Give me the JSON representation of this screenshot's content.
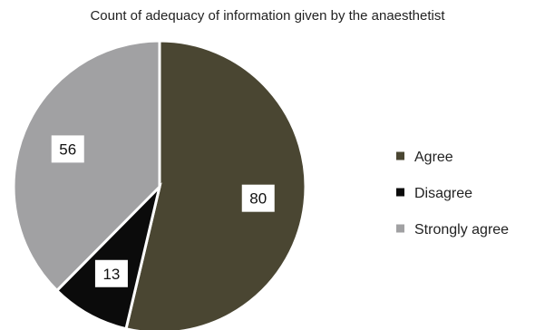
{
  "chart_data": {
    "type": "pie",
    "title": "Count of adequacy of information given by the anaesthetist",
    "categories": [
      "Agree",
      "Disagree",
      "Strongly agree"
    ],
    "values": [
      80,
      13,
      56
    ],
    "colors": [
      "#4a4632",
      "#0b0b0b",
      "#a1a1a3"
    ],
    "start_angle_deg": 0,
    "direction": "clockwise",
    "legend_position": "right",
    "data_labels": true,
    "grid": false
  }
}
